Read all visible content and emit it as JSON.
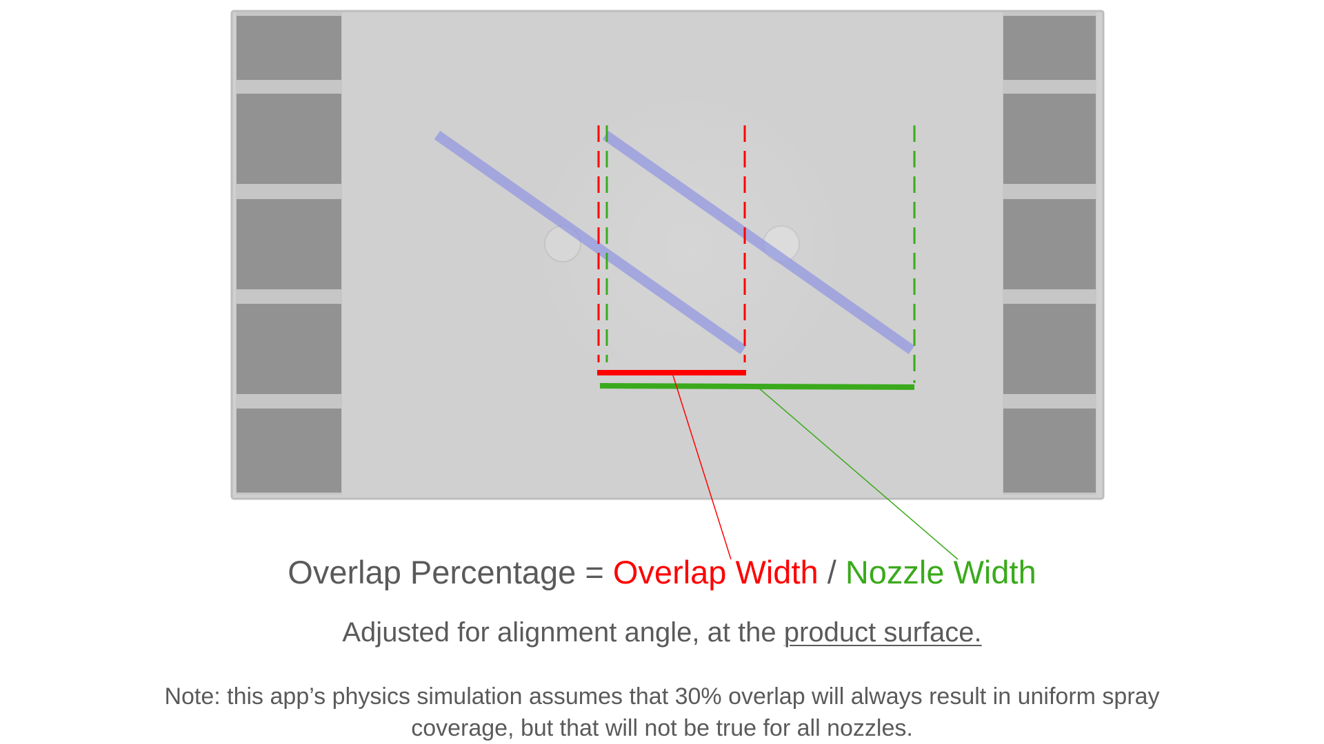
{
  "colors": {
    "overlap": "#ff0000",
    "nozzle": "#3aaa1c",
    "text": "#5a5a5a",
    "spray": "#8f95e2",
    "panel": "#d0d0d0",
    "block": "#929292"
  },
  "formula": {
    "lhs": "Overlap Percentage = ",
    "overlap_label": "Overlap Width",
    "divider": " / ",
    "nozzle_label": "Nozzle Width"
  },
  "subtitle": {
    "prefix": "Adjusted for alignment angle, at the ",
    "emphasis": "product surface."
  },
  "note": "Note: this app’s physics simulation assumes that 30% overlap will always result in uniform spray coverage, but that will not be true for all nozzles."
}
